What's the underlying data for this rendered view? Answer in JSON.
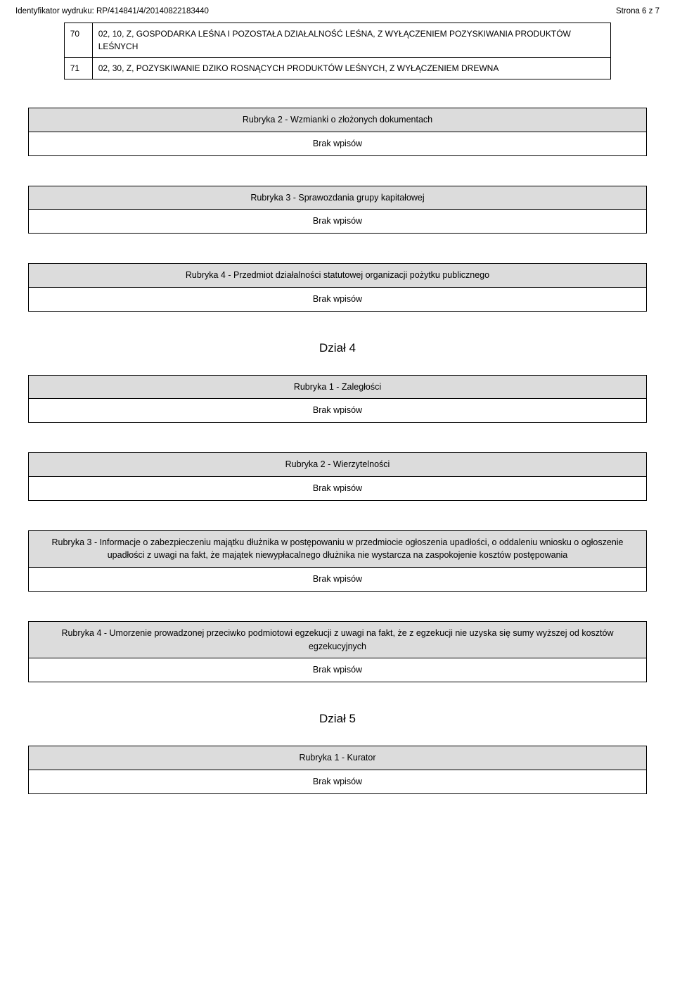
{
  "header": {
    "left": "Identyfikator wydruku: RP/414841/4/20140822183440",
    "right": "Strona 6 z 7"
  },
  "top_table": {
    "rows": [
      {
        "num": "70",
        "text": "02, 10, Z, GOSPODARKA LEŚNA I POZOSTAŁA DZIAŁALNOŚĆ LEŚNA, Z WYŁĄCZENIEM POZYSKIWANIA PRODUKTÓW LEŚNYCH"
      },
      {
        "num": "71",
        "text": "02, 30, Z, POZYSKIWANIE DZIKO ROSNĄCYCH PRODUKTÓW LEŚNYCH, Z WYŁĄCZENIEM DREWNA"
      }
    ]
  },
  "rubryki": [
    {
      "title": "Rubryka 2 - Wzmianki o złożonych dokumentach",
      "content": "Brak wpisów"
    },
    {
      "title": "Rubryka 3 - Sprawozdania grupy kapitałowej",
      "content": "Brak wpisów"
    },
    {
      "title": "Rubryka 4 - Przedmiot działalności statutowej organizacji pożytku publicznego",
      "content": "Brak wpisów"
    }
  ],
  "dzial4": {
    "heading": "Dział 4",
    "items": [
      {
        "title": "Rubryka 1 - Zaległości",
        "content": "Brak wpisów"
      },
      {
        "title": "Rubryka 2 - Wierzytelności",
        "content": "Brak wpisów"
      },
      {
        "title": "Rubryka 3 - Informacje o zabezpieczeniu majątku dłużnika w postępowaniu w przedmiocie ogłoszenia upadłości, o oddaleniu wniosku o ogłoszenie upadłości z uwagi na fakt, że majątek niewypłacalnego dłużnika nie wystarcza na zaspokojenie kosztów postępowania",
        "content": "Brak wpisów"
      },
      {
        "title": "Rubryka 4 - Umorzenie prowadzonej przeciwko podmiotowi egzekucji z uwagi na fakt, że z egzekucji nie uzyska się sumy wyższej od kosztów egzekucyjnych",
        "content": "Brak wpisów"
      }
    ]
  },
  "dzial5": {
    "heading": "Dział 5",
    "items": [
      {
        "title": "Rubryka 1 - Kurator",
        "content": "Brak wpisów"
      }
    ]
  }
}
